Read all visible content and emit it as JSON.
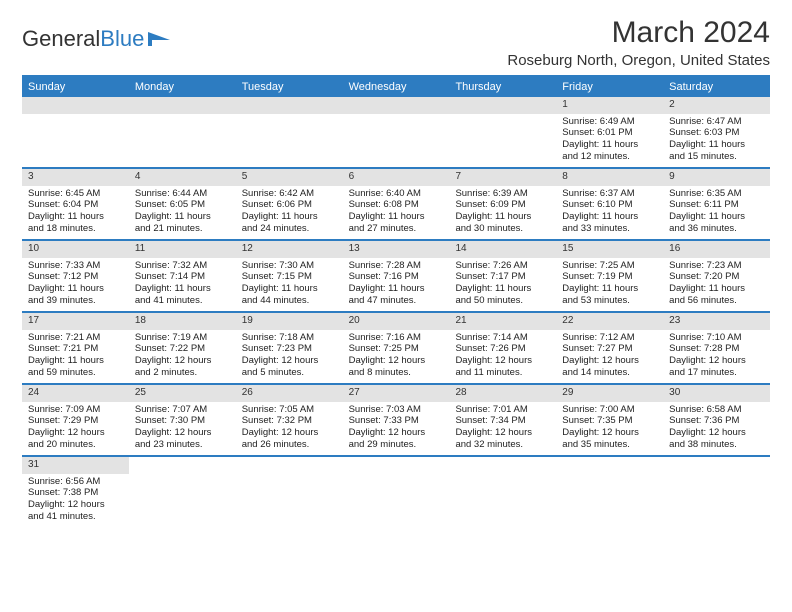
{
  "logo": {
    "text1": "General",
    "text2": "Blue"
  },
  "title": "March 2024",
  "location": "Roseburg North, Oregon, United States",
  "colors": {
    "brand": "#2d7cc1",
    "daynum_bg": "#e3e3e3",
    "text": "#222222",
    "header_text": "#ffffff"
  },
  "typography": {
    "title_fontsize": 30,
    "location_fontsize": 15,
    "weekday_fontsize": 11,
    "cell_fontsize": 9.5
  },
  "weekdays": [
    "Sunday",
    "Monday",
    "Tuesday",
    "Wednesday",
    "Thursday",
    "Friday",
    "Saturday"
  ],
  "weeks": [
    [
      null,
      null,
      null,
      null,
      null,
      {
        "n": "1",
        "sr": "6:49 AM",
        "ss": "6:01 PM",
        "d1": "Daylight: 11 hours",
        "d2": "and 12 minutes."
      },
      {
        "n": "2",
        "sr": "6:47 AM",
        "ss": "6:03 PM",
        "d1": "Daylight: 11 hours",
        "d2": "and 15 minutes."
      }
    ],
    [
      {
        "n": "3",
        "sr": "6:45 AM",
        "ss": "6:04 PM",
        "d1": "Daylight: 11 hours",
        "d2": "and 18 minutes."
      },
      {
        "n": "4",
        "sr": "6:44 AM",
        "ss": "6:05 PM",
        "d1": "Daylight: 11 hours",
        "d2": "and 21 minutes."
      },
      {
        "n": "5",
        "sr": "6:42 AM",
        "ss": "6:06 PM",
        "d1": "Daylight: 11 hours",
        "d2": "and 24 minutes."
      },
      {
        "n": "6",
        "sr": "6:40 AM",
        "ss": "6:08 PM",
        "d1": "Daylight: 11 hours",
        "d2": "and 27 minutes."
      },
      {
        "n": "7",
        "sr": "6:39 AM",
        "ss": "6:09 PM",
        "d1": "Daylight: 11 hours",
        "d2": "and 30 minutes."
      },
      {
        "n": "8",
        "sr": "6:37 AM",
        "ss": "6:10 PM",
        "d1": "Daylight: 11 hours",
        "d2": "and 33 minutes."
      },
      {
        "n": "9",
        "sr": "6:35 AM",
        "ss": "6:11 PM",
        "d1": "Daylight: 11 hours",
        "d2": "and 36 minutes."
      }
    ],
    [
      {
        "n": "10",
        "sr": "7:33 AM",
        "ss": "7:12 PM",
        "d1": "Daylight: 11 hours",
        "d2": "and 39 minutes."
      },
      {
        "n": "11",
        "sr": "7:32 AM",
        "ss": "7:14 PM",
        "d1": "Daylight: 11 hours",
        "d2": "and 41 minutes."
      },
      {
        "n": "12",
        "sr": "7:30 AM",
        "ss": "7:15 PM",
        "d1": "Daylight: 11 hours",
        "d2": "and 44 minutes."
      },
      {
        "n": "13",
        "sr": "7:28 AM",
        "ss": "7:16 PM",
        "d1": "Daylight: 11 hours",
        "d2": "and 47 minutes."
      },
      {
        "n": "14",
        "sr": "7:26 AM",
        "ss": "7:17 PM",
        "d1": "Daylight: 11 hours",
        "d2": "and 50 minutes."
      },
      {
        "n": "15",
        "sr": "7:25 AM",
        "ss": "7:19 PM",
        "d1": "Daylight: 11 hours",
        "d2": "and 53 minutes."
      },
      {
        "n": "16",
        "sr": "7:23 AM",
        "ss": "7:20 PM",
        "d1": "Daylight: 11 hours",
        "d2": "and 56 minutes."
      }
    ],
    [
      {
        "n": "17",
        "sr": "7:21 AM",
        "ss": "7:21 PM",
        "d1": "Daylight: 11 hours",
        "d2": "and 59 minutes."
      },
      {
        "n": "18",
        "sr": "7:19 AM",
        "ss": "7:22 PM",
        "d1": "Daylight: 12 hours",
        "d2": "and 2 minutes."
      },
      {
        "n": "19",
        "sr": "7:18 AM",
        "ss": "7:23 PM",
        "d1": "Daylight: 12 hours",
        "d2": "and 5 minutes."
      },
      {
        "n": "20",
        "sr": "7:16 AM",
        "ss": "7:25 PM",
        "d1": "Daylight: 12 hours",
        "d2": "and 8 minutes."
      },
      {
        "n": "21",
        "sr": "7:14 AM",
        "ss": "7:26 PM",
        "d1": "Daylight: 12 hours",
        "d2": "and 11 minutes."
      },
      {
        "n": "22",
        "sr": "7:12 AM",
        "ss": "7:27 PM",
        "d1": "Daylight: 12 hours",
        "d2": "and 14 minutes."
      },
      {
        "n": "23",
        "sr": "7:10 AM",
        "ss": "7:28 PM",
        "d1": "Daylight: 12 hours",
        "d2": "and 17 minutes."
      }
    ],
    [
      {
        "n": "24",
        "sr": "7:09 AM",
        "ss": "7:29 PM",
        "d1": "Daylight: 12 hours",
        "d2": "and 20 minutes."
      },
      {
        "n": "25",
        "sr": "7:07 AM",
        "ss": "7:30 PM",
        "d1": "Daylight: 12 hours",
        "d2": "and 23 minutes."
      },
      {
        "n": "26",
        "sr": "7:05 AM",
        "ss": "7:32 PM",
        "d1": "Daylight: 12 hours",
        "d2": "and 26 minutes."
      },
      {
        "n": "27",
        "sr": "7:03 AM",
        "ss": "7:33 PM",
        "d1": "Daylight: 12 hours",
        "d2": "and 29 minutes."
      },
      {
        "n": "28",
        "sr": "7:01 AM",
        "ss": "7:34 PM",
        "d1": "Daylight: 12 hours",
        "d2": "and 32 minutes."
      },
      {
        "n": "29",
        "sr": "7:00 AM",
        "ss": "7:35 PM",
        "d1": "Daylight: 12 hours",
        "d2": "and 35 minutes."
      },
      {
        "n": "30",
        "sr": "6:58 AM",
        "ss": "7:36 PM",
        "d1": "Daylight: 12 hours",
        "d2": "and 38 minutes."
      }
    ],
    [
      {
        "n": "31",
        "sr": "6:56 AM",
        "ss": "7:38 PM",
        "d1": "Daylight: 12 hours",
        "d2": "and 41 minutes."
      },
      null,
      null,
      null,
      null,
      null,
      null
    ]
  ]
}
